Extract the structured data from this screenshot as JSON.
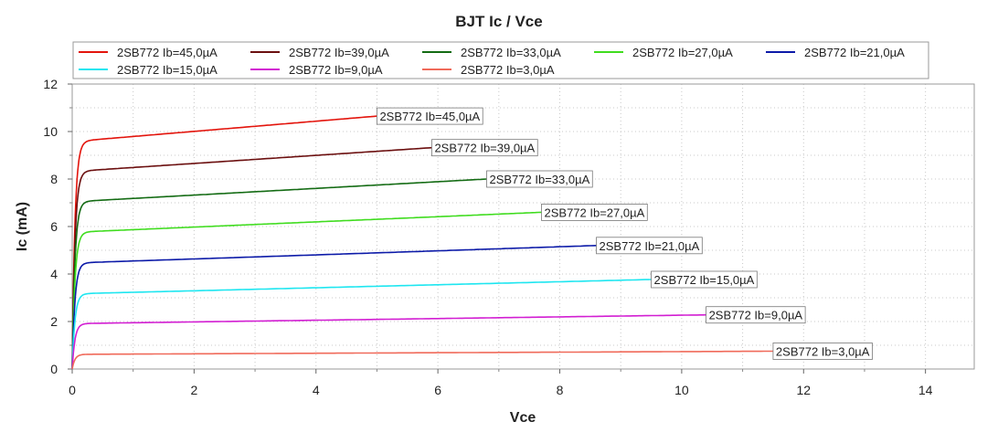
{
  "chart_data": {
    "type": "line",
    "title": "BJT Ic / Vce",
    "xlabel": "Vce",
    "ylabel": "Ic (mA)",
    "xlim": [
      0,
      14.8
    ],
    "ylim": [
      0,
      12
    ],
    "xticks": [
      0,
      2,
      4,
      6,
      8,
      10,
      12,
      14
    ],
    "yticks": [
      0,
      2,
      4,
      6,
      8,
      10,
      12
    ],
    "grid": true,
    "legend_position": "top",
    "series": [
      {
        "name": "2SB772 Ib=45,0µA",
        "color": "#e3140c",
        "sat": 9.62,
        "end": 10.65,
        "vmax": 5.0
      },
      {
        "name": "2SB772 Ib=39,0µA",
        "color": "#6b0f0f",
        "sat": 8.35,
        "end": 9.32,
        "vmax": 5.9
      },
      {
        "name": "2SB772 Ib=33,0µA",
        "color": "#136b13",
        "sat": 7.07,
        "end": 8.0,
        "vmax": 6.8
      },
      {
        "name": "2SB772 Ib=27,0µA",
        "color": "#3fdc1e",
        "sat": 5.78,
        "end": 6.6,
        "vmax": 7.7
      },
      {
        "name": "2SB772 Ib=21,0µA",
        "color": "#0c1aa8",
        "sat": 4.48,
        "end": 5.2,
        "vmax": 8.6
      },
      {
        "name": "2SB772 Ib=15,0µA",
        "color": "#1ee6f0",
        "sat": 3.18,
        "end": 3.77,
        "vmax": 9.5
      },
      {
        "name": "2SB772 Ib=9,0µA",
        "color": "#d21ed2",
        "sat": 1.92,
        "end": 2.28,
        "vmax": 10.4
      },
      {
        "name": "2SB772 Ib=3,0µA",
        "color": "#f06a5a",
        "sat": 0.62,
        "end": 0.75,
        "vmax": 11.5
      }
    ]
  }
}
